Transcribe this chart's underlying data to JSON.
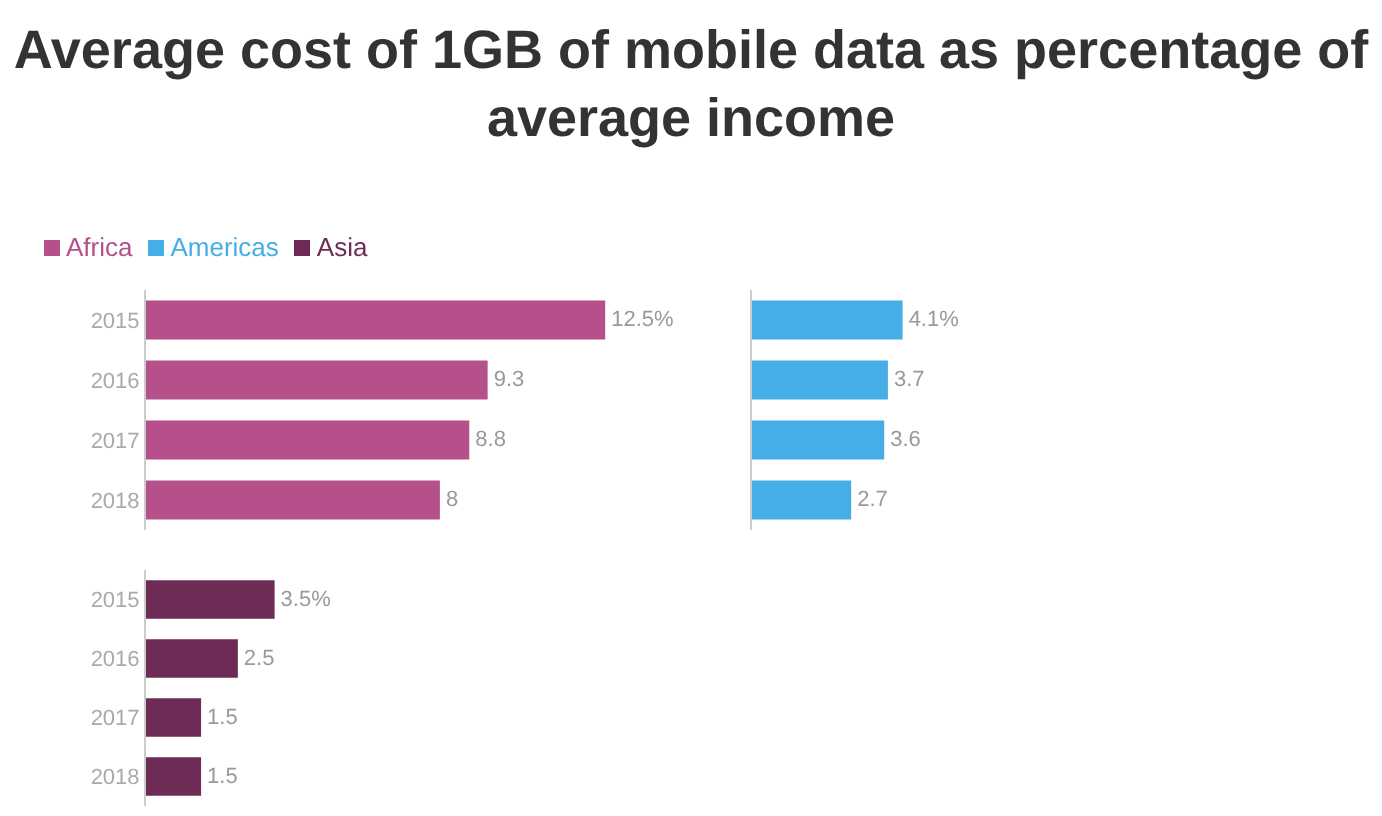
{
  "chart_data": [
    {
      "type": "bar",
      "title": "Average cost of 1GB of mobile data as percentage of average income",
      "orientation": "horizontal",
      "legend": "top left",
      "categories": [
        "2015",
        "2016",
        "2017",
        "2018"
      ],
      "series": [
        {
          "name": "Africa",
          "color": "#b5508a",
          "values": [
            12.5,
            9.3,
            8.8,
            8
          ],
          "value_labels": [
            "12.5%",
            "9.3",
            "8.8",
            "8"
          ]
        }
      ]
    },
    {
      "type": "bar",
      "orientation": "horizontal",
      "tick_labels": false,
      "categories": [
        "2015",
        "2016",
        "2017",
        "2018"
      ],
      "series": [
        {
          "name": "Americas",
          "color": "#45aee6",
          "values": [
            4.1,
            3.7,
            3.6,
            2.7
          ],
          "value_labels": [
            "4.1%",
            "3.7",
            "3.6",
            "2.7"
          ]
        }
      ]
    },
    {
      "type": "bar",
      "orientation": "horizontal",
      "categories": [
        "2015",
        "2016",
        "2017",
        "2018"
      ],
      "series": [
        {
          "name": "Asia",
          "color": "#6e2b55",
          "values": [
            3.5,
            2.5,
            1.5,
            1.5
          ],
          "value_labels": [
            "3.5%",
            "2.5",
            "1.5",
            "1.5"
          ]
        }
      ]
    }
  ]
}
